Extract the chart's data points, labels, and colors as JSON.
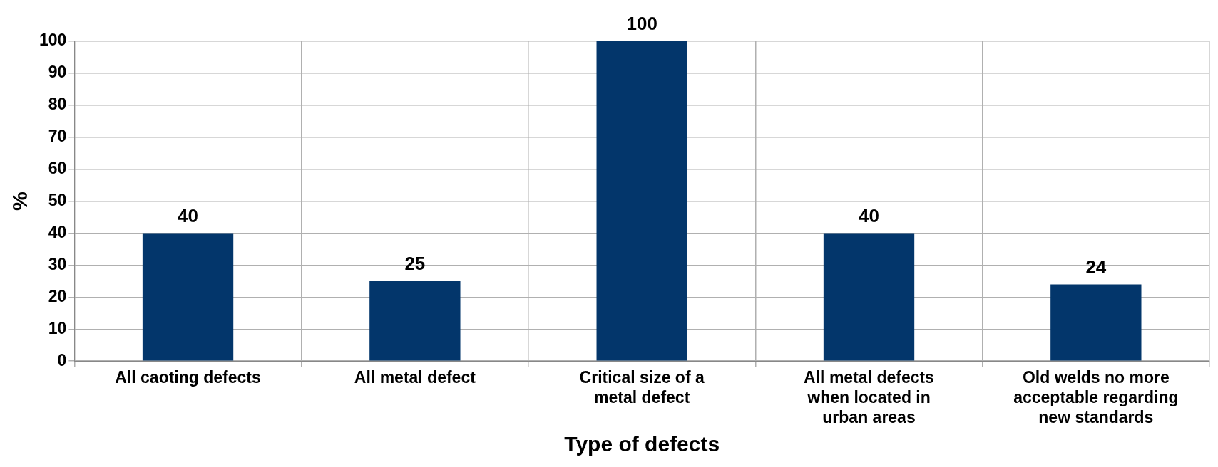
{
  "chart_data": {
    "type": "bar",
    "xlabel": "Type of defects",
    "ylabel": "%",
    "categories": [
      "All caoting defects",
      "All metal defect",
      "Critical size of a metal defect",
      "All metal defects when located in urban areas",
      "Old welds no more acceptable regarding new standards"
    ],
    "values": [
      40,
      25,
      100,
      40,
      24
    ],
    "color": "#03366b",
    "ylim": [
      0,
      100
    ],
    "yticks": [
      0,
      10,
      20,
      30,
      40,
      50,
      60,
      70,
      80,
      90,
      100
    ],
    "grid": true,
    "data_labels": true,
    "legend": false
  }
}
